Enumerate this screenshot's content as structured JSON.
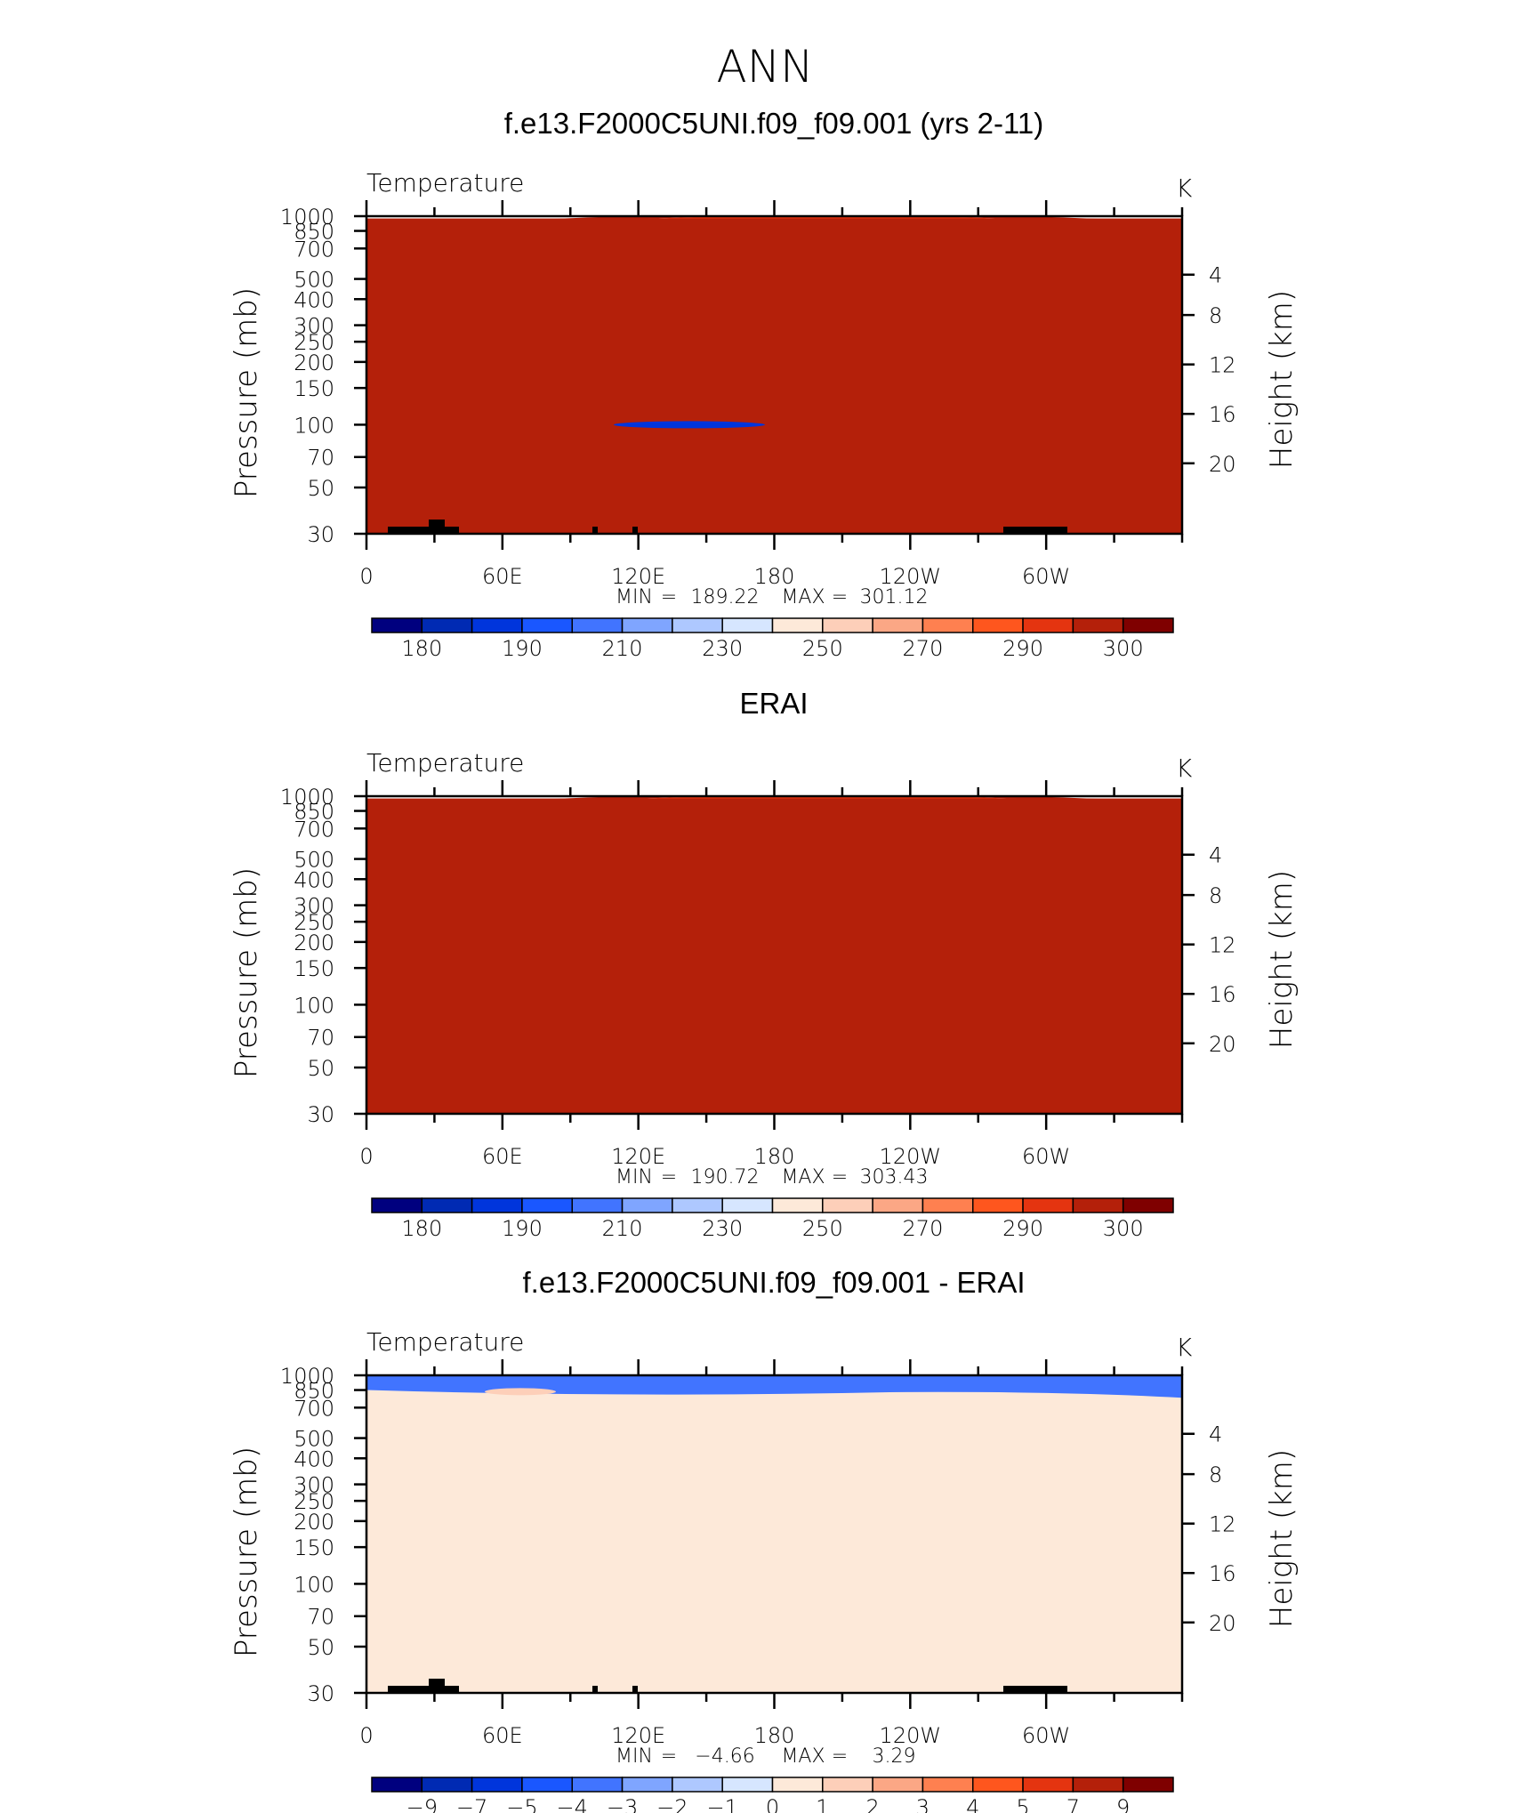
{
  "page": {
    "season": "ANN"
  },
  "colors": {
    "temperature_levels": [
      "#00007f",
      "#002ab3",
      "#0035dc",
      "#1a57ff",
      "#4174ff",
      "#7fa5ff",
      "#aec8ff",
      "#d6e6ff",
      "#fde9d9",
      "#fdcfb9",
      "#fba785",
      "#fe8050",
      "#fe561e",
      "#e43410",
      "#b4200a",
      "#7f0000"
    ],
    "difference_levels": [
      "#00007f",
      "#002ab3",
      "#0035dc",
      "#1a57ff",
      "#4174ff",
      "#7fa5ff",
      "#aec8ff",
      "#d6e6ff",
      "#fde9d9",
      "#fdcfb9",
      "#fba785",
      "#fe8050",
      "#fe561e",
      "#e43410",
      "#b4200a",
      "#7f0000"
    ]
  },
  "chart_data": [
    {
      "type": "heatmap",
      "title": "f.e13.F2000C5UNI.f09_f09.001 (yrs 2-11)",
      "variable": "Temperature",
      "units": "K",
      "ylabel": "Pressure (mb)",
      "ylabel_right": "Height (km)",
      "x_tick_labels": [
        "0",
        "60E",
        "120E",
        "180",
        "120W",
        "60W"
      ],
      "y_tick_labels": [
        "30",
        "50",
        "70",
        "100",
        "150",
        "200",
        "250",
        "300",
        "400",
        "500",
        "700",
        "850",
        "1000"
      ],
      "y_right_tick_labels": [
        "20",
        "16",
        "12",
        "8",
        "4"
      ],
      "stats": {
        "min_label": "MIN",
        "min": "189.22",
        "max_label": "MAX",
        "max": "301.12"
      },
      "colorbar_labels": [
        "180",
        "190",
        "210",
        "230",
        "250",
        "270",
        "290",
        "300"
      ],
      "yscale": "log",
      "ylim": [
        1000,
        30
      ],
      "xlim": [
        0,
        360
      ]
    },
    {
      "type": "heatmap",
      "title": "ERAI",
      "variable": "Temperature",
      "units": "K",
      "ylabel": "Pressure (mb)",
      "ylabel_right": "Height (km)",
      "x_tick_labels": [
        "0",
        "60E",
        "120E",
        "180",
        "120W",
        "60W"
      ],
      "y_tick_labels": [
        "30",
        "50",
        "70",
        "100",
        "150",
        "200",
        "250",
        "300",
        "400",
        "500",
        "700",
        "850",
        "1000"
      ],
      "y_right_tick_labels": [
        "20",
        "16",
        "12",
        "8",
        "4"
      ],
      "stats": {
        "min_label": "MIN",
        "min": "190.72",
        "max_label": "MAX",
        "max": "303.43"
      },
      "colorbar_labels": [
        "180",
        "190",
        "210",
        "230",
        "250",
        "270",
        "290",
        "300"
      ],
      "yscale": "log",
      "ylim": [
        1000,
        30
      ],
      "xlim": [
        0,
        360
      ]
    },
    {
      "type": "heatmap",
      "title": "f.e13.F2000C5UNI.f09_f09.001 - ERAI",
      "variable": "Temperature",
      "units": "K",
      "ylabel": "Pressure (mb)",
      "ylabel_right": "Height (km)",
      "x_tick_labels": [
        "0",
        "60E",
        "120E",
        "180",
        "120W",
        "60W"
      ],
      "y_tick_labels": [
        "30",
        "50",
        "70",
        "100",
        "150",
        "200",
        "250",
        "300",
        "400",
        "500",
        "700",
        "850",
        "1000"
      ],
      "y_right_tick_labels": [
        "20",
        "16",
        "12",
        "8",
        "4"
      ],
      "stats": {
        "min_label": "MIN",
        "min": "−4.66",
        "max_label": "MAX",
        "max": "3.29"
      },
      "colorbar_labels": [
        "−9",
        "−7",
        "−5",
        "−4",
        "−3",
        "−2",
        "−1",
        "0",
        "1",
        "2",
        "3",
        "4",
        "5",
        "7",
        "9"
      ],
      "yscale": "log",
      "ylim": [
        1000,
        30
      ],
      "xlim": [
        0,
        360
      ]
    }
  ]
}
